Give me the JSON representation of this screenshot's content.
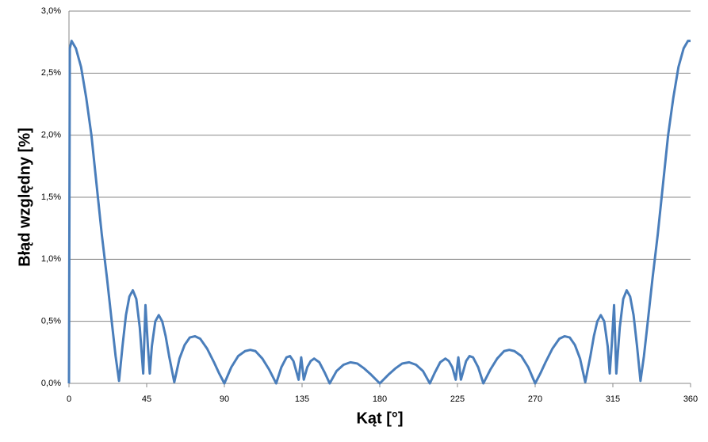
{
  "chart_data": {
    "type": "line",
    "x_label": "Kąt [°]",
    "y_label": "Błąd względny [%]",
    "xlim": [
      0,
      360
    ],
    "xticks": [
      0,
      45,
      90,
      135,
      180,
      225,
      270,
      315,
      360
    ],
    "ylim": [
      0,
      3
    ],
    "yticks": [
      {
        "value": 0,
        "label": "0,0%"
      },
      {
        "value": 0.5,
        "label": "0,5%"
      },
      {
        "value": 1,
        "label": "1,0%"
      },
      {
        "value": 1.5,
        "label": "1,5%"
      },
      {
        "value": 2,
        "label": "2,0%"
      },
      {
        "value": 2.5,
        "label": "2,5%"
      },
      {
        "value": 3,
        "label": "3,0%"
      }
    ],
    "grid": true,
    "color": "#4a7ebb",
    "x": [
      0,
      0.5,
      1.5,
      4,
      7,
      10,
      13,
      16,
      19,
      22,
      25,
      27,
      29,
      31,
      33,
      35,
      37,
      39,
      41,
      43,
      44.3,
      45.7,
      46.8,
      48,
      50,
      52,
      54,
      56,
      58,
      61,
      64,
      67,
      70,
      73,
      76,
      80,
      84,
      87,
      90,
      94,
      98,
      102,
      105,
      108,
      112,
      116,
      120,
      123,
      126,
      128,
      130,
      133,
      134.5,
      136,
      138,
      140,
      142,
      145,
      148,
      151,
      155,
      159,
      163,
      167,
      171,
      175,
      180,
      185,
      189,
      193,
      197,
      201,
      205,
      209,
      212,
      215,
      218,
      220,
      222,
      224,
      225.5,
      227,
      230,
      232,
      234,
      237,
      240,
      244,
      248,
      252,
      255,
      258,
      262,
      266,
      270,
      273,
      276,
      280,
      284,
      287,
      290,
      293,
      296,
      299,
      302,
      304,
      306,
      308,
      310,
      312,
      313.2,
      314.3,
      315.7,
      317,
      319,
      321,
      323,
      325,
      327,
      329,
      331,
      333,
      335,
      338,
      341,
      344,
      347,
      350,
      353,
      356,
      358.5,
      360
    ],
    "values": [
      0,
      2.7,
      2.76,
      2.7,
      2.55,
      2.3,
      2.0,
      1.6,
      1.2,
      0.85,
      0.47,
      0.22,
      0.02,
      0.3,
      0.55,
      0.7,
      0.75,
      0.68,
      0.45,
      0.08,
      0.63,
      0.3,
      0.08,
      0.3,
      0.5,
      0.55,
      0.5,
      0.38,
      0.22,
      0.01,
      0.2,
      0.31,
      0.37,
      0.38,
      0.36,
      0.28,
      0.17,
      0.08,
      0,
      0.13,
      0.22,
      0.26,
      0.27,
      0.26,
      0.2,
      0.11,
      0,
      0.13,
      0.21,
      0.22,
      0.18,
      0.03,
      0.21,
      0.03,
      0.13,
      0.18,
      0.2,
      0.17,
      0.09,
      0,
      0.1,
      0.15,
      0.17,
      0.16,
      0.12,
      0.07,
      0,
      0.07,
      0.12,
      0.16,
      0.17,
      0.15,
      0.1,
      0,
      0.09,
      0.17,
      0.2,
      0.18,
      0.13,
      0.03,
      0.21,
      0.03,
      0.18,
      0.22,
      0.21,
      0.13,
      0,
      0.11,
      0.2,
      0.26,
      0.27,
      0.26,
      0.22,
      0.13,
      0,
      0.08,
      0.17,
      0.28,
      0.36,
      0.38,
      0.37,
      0.31,
      0.2,
      0.01,
      0.22,
      0.38,
      0.5,
      0.55,
      0.5,
      0.3,
      0.08,
      0.3,
      0.63,
      0.08,
      0.45,
      0.68,
      0.75,
      0.7,
      0.55,
      0.3,
      0.02,
      0.22,
      0.47,
      0.85,
      1.2,
      1.6,
      2.0,
      2.3,
      2.55,
      2.7,
      2.76,
      2.76
    ]
  }
}
